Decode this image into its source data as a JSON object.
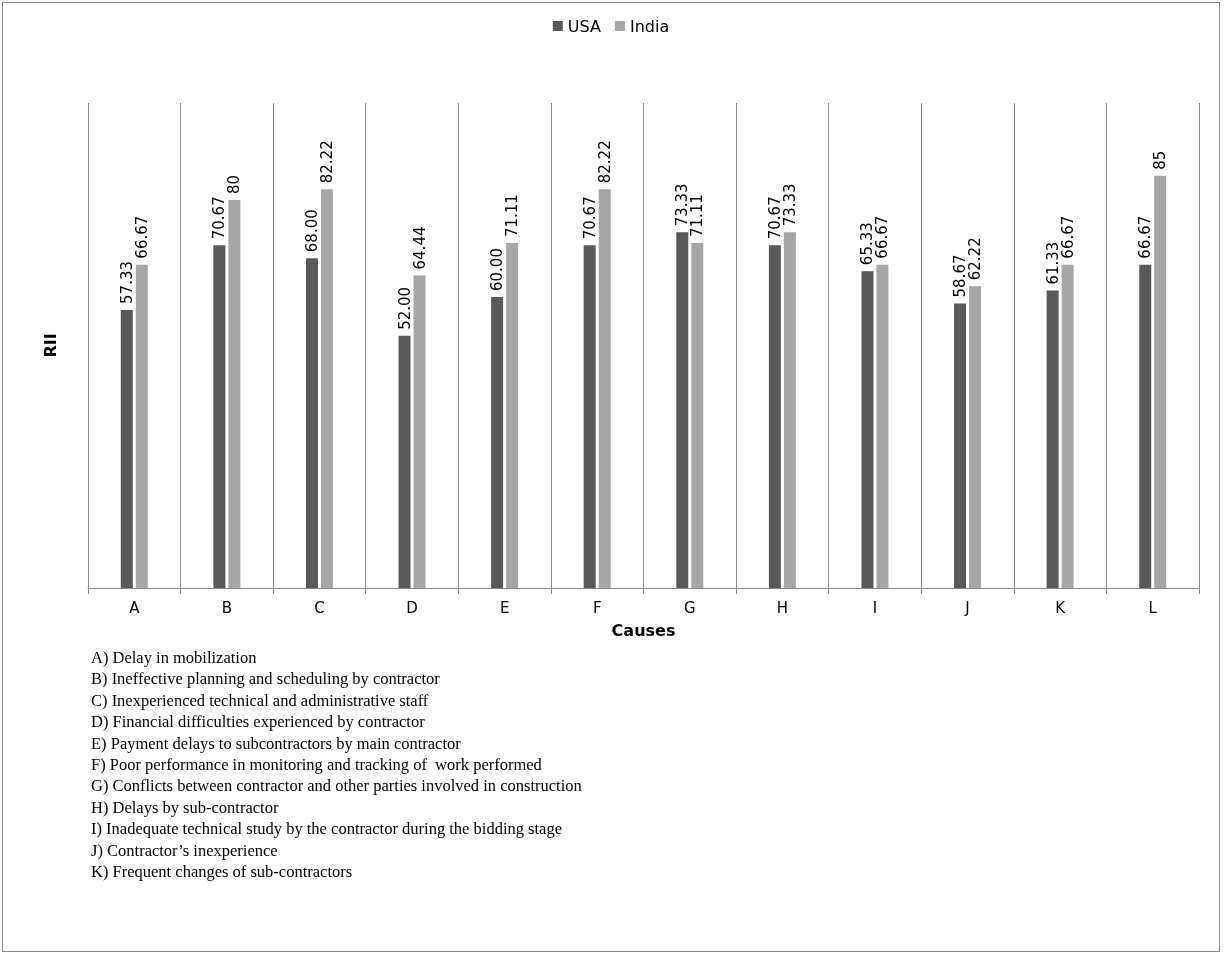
{
  "chart_data": {
    "type": "bar",
    "xlabel": "Causes",
    "ylabel": "RII",
    "categories": [
      "A",
      "B",
      "C",
      "D",
      "E",
      "F",
      "G",
      "H",
      "I",
      "J",
      "K",
      "L"
    ],
    "series": [
      {
        "name": "USA",
        "color": "#595959",
        "values": [
          57.33,
          70.67,
          68.0,
          52.0,
          60.0,
          70.67,
          73.33,
          70.67,
          65.33,
          58.67,
          61.33,
          66.67
        ],
        "value_labels": [
          "57.33",
          "70.67",
          "68.00",
          "52.00",
          "60.00",
          "70.67",
          "73.33",
          "70.67",
          "65.33",
          "58.67",
          "61.33",
          "66.67"
        ]
      },
      {
        "name": "India",
        "color": "#a6a6a6",
        "values": [
          66.67,
          80,
          82.22,
          64.44,
          71.11,
          82.22,
          71.11,
          73.33,
          66.67,
          62.22,
          66.67,
          85
        ],
        "value_labels": [
          "66.67",
          "80",
          "82.22",
          "64.44",
          "71.11",
          "82.22",
          "71.11",
          "73.33",
          "66.67",
          "62.22",
          "66.67",
          "85"
        ]
      }
    ],
    "grid": "x",
    "legend": "top",
    "tick_labels": "x",
    "annotations": [
      "A) Delay in mobilization",
      "B) Ineffective planning and scheduling by contractor",
      "C) Inexperienced technical and administrative staff",
      "D) Financial difficulties experienced by contractor",
      "E) Payment delays to subcontractors by main contractor",
      "F) Poor performance in monitoring and tracking of  work performed",
      "G) Conflicts between contractor and other parties involved in construction",
      "H) Delays by sub-contractor",
      "I) Inadequate technical study by the contractor during the bidding stage",
      "J) Contractor’s inexperience",
      "K) Frequent changes of sub-contractors"
    ]
  }
}
